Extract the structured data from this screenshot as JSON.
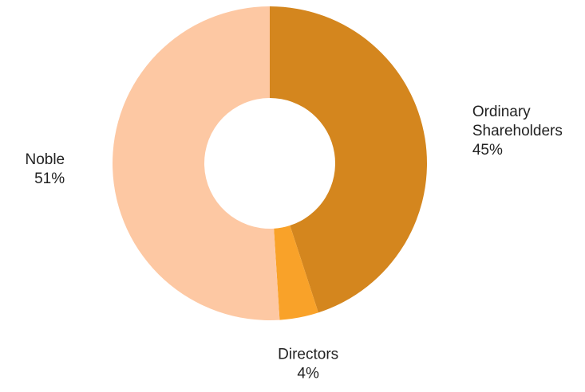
{
  "chart_data": {
    "type": "donut",
    "categories": [
      "Ordinary Shareholders",
      "Directors",
      "Noble"
    ],
    "values": [
      45,
      4,
      51
    ],
    "value_labels": [
      "45%",
      "4%",
      "51%"
    ],
    "colors": [
      "#d4861e",
      "#f9a229",
      "#fdc8a3"
    ]
  }
}
